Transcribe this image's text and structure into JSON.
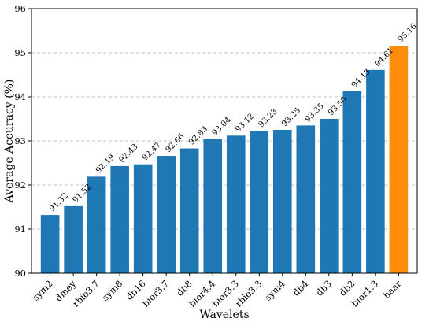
{
  "chart_data": {
    "type": "bar",
    "title": "",
    "xlabel": "Wavelets",
    "ylabel": "Average Accuracy (%)",
    "ylim": [
      90,
      96
    ],
    "yticks": [
      90,
      91,
      92,
      93,
      94,
      95,
      96
    ],
    "grid": true,
    "categories": [
      "sym2",
      "dmey",
      "rbio3.7",
      "sym8",
      "db16",
      "bior3.7",
      "db8",
      "bior4.4",
      "bior3.3",
      "rbio3.3",
      "sym4",
      "db4",
      "db3",
      "db2",
      "bior1.3",
      "haar"
    ],
    "values": [
      91.32,
      91.52,
      92.19,
      92.43,
      92.47,
      92.66,
      92.83,
      93.04,
      93.12,
      93.23,
      93.25,
      93.35,
      93.5,
      94.13,
      94.61,
      95.16
    ],
    "value_labels": [
      "91.32",
      "91.52",
      "92.19",
      "92.43",
      "92.47",
      "92.66",
      "92.83",
      "93.04",
      "93.12",
      "93.23",
      "93.25",
      "93.35",
      "93.50",
      "94.13",
      "94.61",
      "95.16"
    ],
    "highlight_index": 15,
    "colors": {
      "bar": "#1f77b4",
      "highlight": "#ff8c0a",
      "grid": "#b0b0b0"
    }
  }
}
